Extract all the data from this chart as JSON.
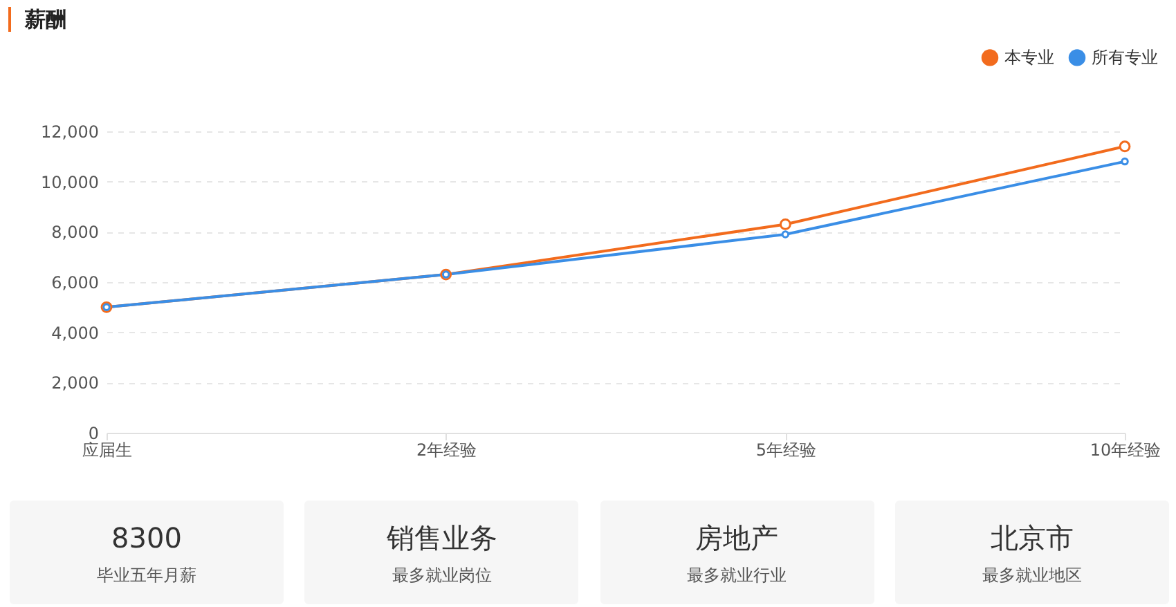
{
  "chart_data": [
    {
      "type": "line",
      "title": "薪酬",
      "categories": [
        "应届生",
        "2年经验",
        "5年经验",
        "10年经验"
      ],
      "series": [
        {
          "name": "本专业",
          "color": "#f26b1d",
          "values": [
            5000,
            6300,
            8300,
            11400
          ]
        },
        {
          "name": "所有专业",
          "color": "#3a8ee6",
          "values": [
            5000,
            6300,
            7900,
            10800
          ]
        }
      ],
      "ylim": [
        0,
        12000
      ],
      "yticks": [
        {
          "value": 0,
          "label": "0"
        },
        {
          "value": 2000,
          "label": "2,000"
        },
        {
          "value": 4000,
          "label": "4,000"
        },
        {
          "value": 6000,
          "label": "6,000"
        },
        {
          "value": 8000,
          "label": "8,000"
        },
        {
          "value": 10000,
          "label": "10,000"
        },
        {
          "value": 12000,
          "label": "12,000"
        }
      ],
      "grid": "y",
      "legend": "top right",
      "marker": "circle",
      "line_style": "solid"
    },
    {
      "type": "other",
      "annotations": [
        "8300",
        "毕业五年月薪",
        "销售业务",
        "最多就业岗位",
        "房地产",
        "最多就业行业",
        "北京市",
        "最多就业地区"
      ]
    }
  ]
}
